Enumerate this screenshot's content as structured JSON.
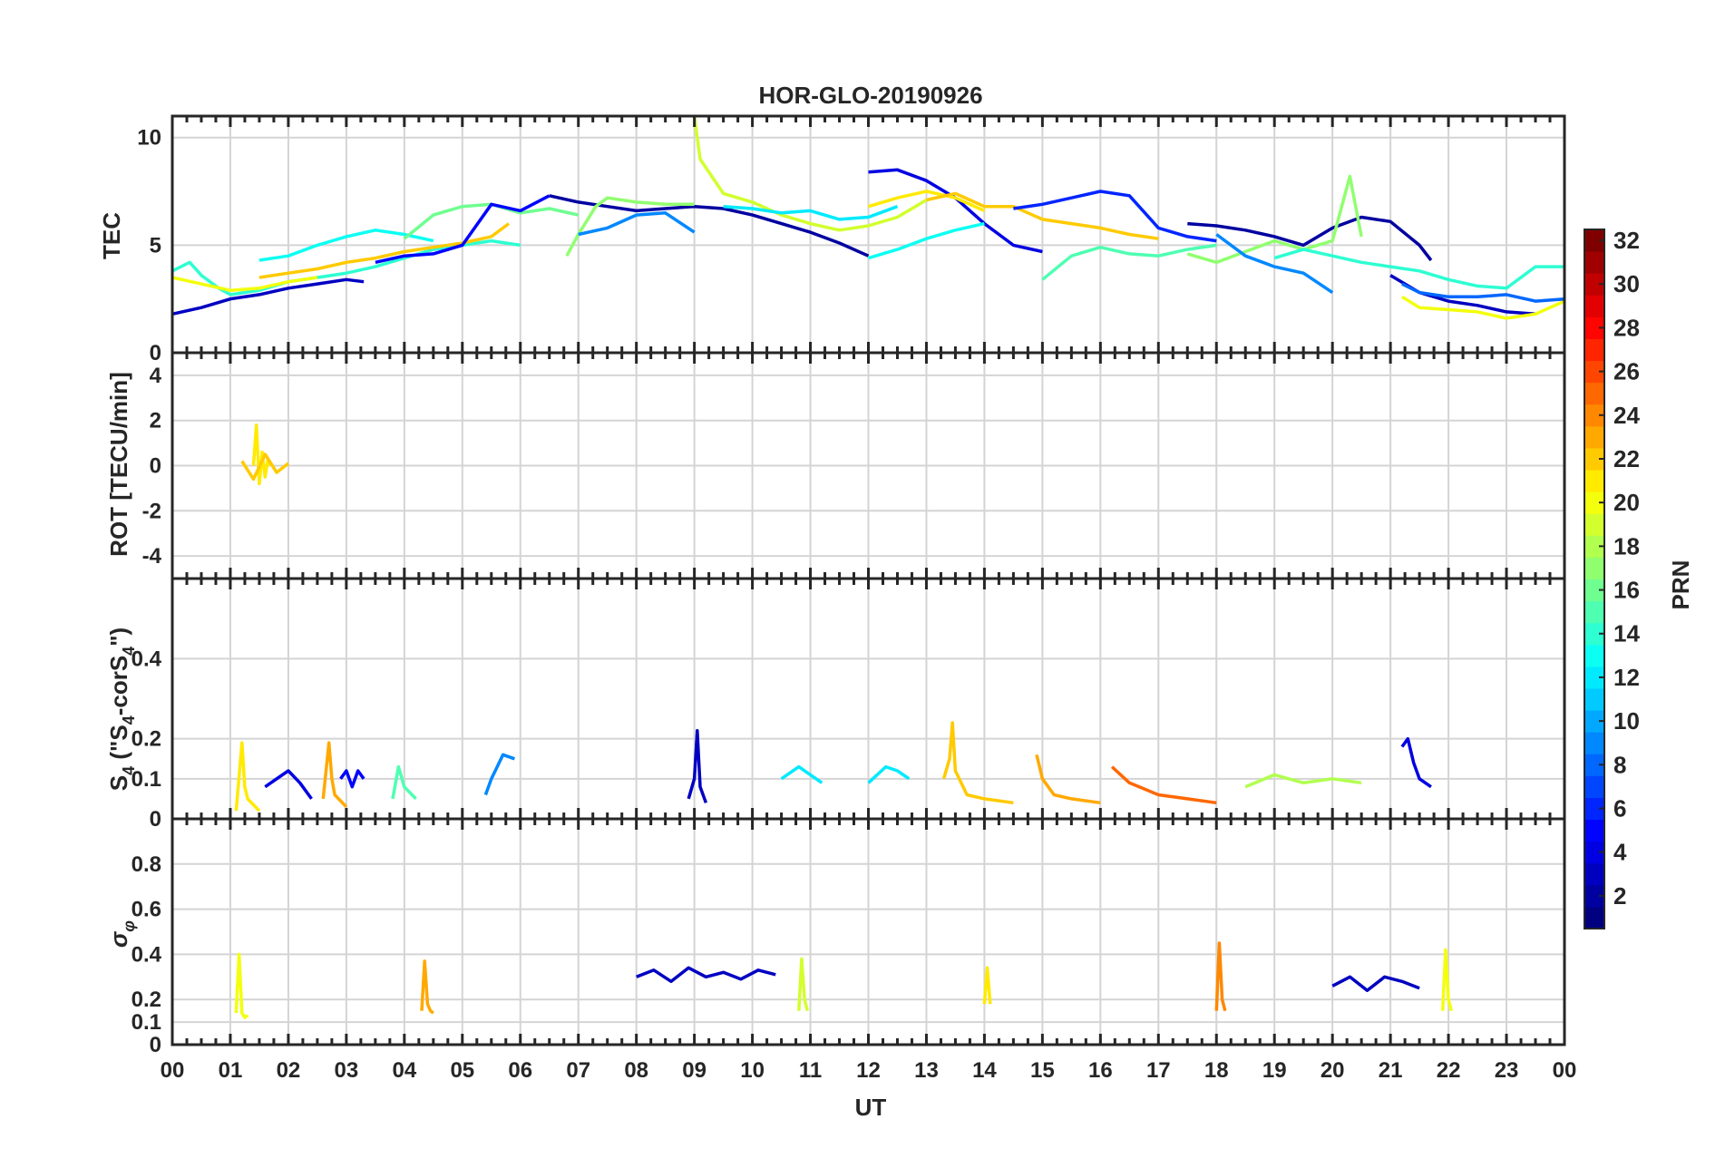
{
  "chart_data": {
    "type": "line",
    "title": "HOR-GLO-20190926",
    "xlabel": "UT",
    "x_ticks": [
      "00",
      "01",
      "02",
      "03",
      "04",
      "05",
      "06",
      "07",
      "08",
      "09",
      "10",
      "11",
      "12",
      "13",
      "14",
      "15",
      "16",
      "17",
      "18",
      "19",
      "20",
      "21",
      "22",
      "23",
      "00"
    ],
    "xlim": [
      0,
      24
    ],
    "grid": true,
    "colorbar": {
      "label": "PRN",
      "range": [
        1,
        32
      ],
      "ticks": [
        "2",
        "4",
        "6",
        "8",
        "10",
        "12",
        "14",
        "16",
        "18",
        "20",
        "22",
        "24",
        "26",
        "28",
        "30",
        "32"
      ],
      "colormap": "jet"
    },
    "panels": [
      {
        "name": "tec",
        "ylabel": "TEC",
        "ylim": [
          0,
          11
        ],
        "yticks": [
          "0",
          "5",
          "10"
        ],
        "series": [
          {
            "prn": 3,
            "x": [
              0.0,
              0.5,
              1.0,
              1.5,
              2.0,
              2.5,
              3.0,
              3.3
            ],
            "y": [
              1.8,
              2.1,
              2.5,
              2.7,
              3.0,
              3.2,
              3.4,
              3.3
            ]
          },
          {
            "prn": 14,
            "x": [
              0.0,
              0.3,
              0.5,
              0.8,
              1.0,
              1.5,
              2.0,
              2.5,
              3.0,
              3.5,
              4.0,
              4.5,
              5.0,
              5.5,
              6.0
            ],
            "y": [
              3.8,
              4.2,
              3.6,
              3.0,
              2.7,
              2.9,
              3.3,
              3.5,
              3.7,
              4.0,
              4.4,
              4.8,
              5.0,
              5.2,
              5.0
            ]
          },
          {
            "prn": 20,
            "x": [
              0.0,
              0.5,
              1.0,
              1.5,
              2.0,
              2.5
            ],
            "y": [
              3.5,
              3.2,
              2.9,
              3.0,
              3.3,
              3.5
            ]
          },
          {
            "prn": 22,
            "x": [
              1.5,
              2.0,
              2.5,
              3.0,
              3.5,
              4.0,
              4.5,
              5.0,
              5.5,
              5.8
            ],
            "y": [
              3.5,
              3.7,
              3.9,
              4.2,
              4.4,
              4.7,
              4.9,
              5.1,
              5.4,
              6.0
            ]
          },
          {
            "prn": 13,
            "x": [
              1.5,
              2.0,
              2.5,
              3.0,
              3.5,
              4.0,
              4.5
            ],
            "y": [
              4.3,
              4.5,
              5.0,
              5.4,
              5.7,
              5.5,
              5.2
            ]
          },
          {
            "prn": 16,
            "x": [
              4.0,
              4.5,
              5.0,
              5.5,
              6.0,
              6.5,
              7.0
            ],
            "y": [
              5.3,
              6.4,
              6.8,
              6.9,
              6.5,
              6.7,
              6.4
            ]
          },
          {
            "prn": 5,
            "x": [
              3.5,
              4.0,
              4.5,
              5.0,
              5.5,
              6.0,
              6.5
            ],
            "y": [
              4.2,
              4.5,
              4.6,
              5.0,
              6.9,
              6.6,
              7.3
            ]
          },
          {
            "prn": 2,
            "x": [
              6.5,
              7.0,
              7.5,
              8.0,
              8.5,
              9.0,
              9.5,
              10.0,
              10.5,
              11.0,
              11.5,
              12.0
            ],
            "y": [
              7.3,
              7.0,
              6.8,
              6.6,
              6.7,
              6.8,
              6.7,
              6.4,
              6.0,
              5.6,
              5.1,
              4.5
            ]
          },
          {
            "prn": 17,
            "x": [
              6.8,
              7.0,
              7.3,
              7.5,
              8.0,
              8.5,
              9.0
            ],
            "y": [
              4.5,
              5.5,
              6.8,
              7.2,
              7.0,
              6.9,
              6.9
            ]
          },
          {
            "prn": 9,
            "x": [
              7.0,
              7.5,
              8.0,
              8.5,
              9.0
            ],
            "y": [
              5.5,
              5.8,
              6.4,
              6.5,
              5.6
            ]
          },
          {
            "prn": 19,
            "x": [
              9.0,
              9.1,
              9.3,
              9.5,
              10.0,
              10.5,
              11.0,
              11.5,
              12.0,
              12.5,
              13.0
            ],
            "y": [
              11.0,
              9.0,
              8.2,
              7.4,
              7.0,
              6.4,
              6.0,
              5.7,
              5.9,
              6.3,
              7.1
            ]
          },
          {
            "prn": 12,
            "x": [
              9.5,
              10.0,
              10.5,
              11.0,
              11.5,
              12.0,
              12.5
            ],
            "y": [
              6.8,
              6.7,
              6.5,
              6.6,
              6.2,
              6.3,
              6.8
            ]
          },
          {
            "prn": 4,
            "x": [
              12.0,
              12.5,
              13.0,
              13.5,
              14.0,
              14.5,
              15.0
            ],
            "y": [
              8.4,
              8.5,
              8.0,
              7.2,
              6.0,
              5.0,
              4.7
            ]
          },
          {
            "prn": 21,
            "x": [
              12.0,
              12.5,
              13.0,
              13.5,
              14.0
            ],
            "y": [
              6.8,
              7.2,
              7.5,
              7.2,
              6.6
            ]
          },
          {
            "prn": 13,
            "x": [
              12.0,
              12.5,
              13.0,
              13.5,
              14.0
            ],
            "y": [
              4.4,
              4.8,
              5.3,
              5.7,
              6.0
            ]
          },
          {
            "prn": 22,
            "x": [
              13.0,
              13.5,
              14.0,
              14.5,
              15.0,
              15.5,
              16.0,
              16.5,
              17.0
            ],
            "y": [
              7.1,
              7.4,
              6.8,
              6.8,
              6.2,
              6.0,
              5.8,
              5.5,
              5.3
            ]
          },
          {
            "prn": 6,
            "x": [
              14.5,
              15.0,
              15.5,
              16.0,
              16.5,
              17.0,
              17.5,
              18.0
            ],
            "y": [
              6.7,
              6.9,
              7.2,
              7.5,
              7.3,
              5.8,
              5.4,
              5.2
            ]
          },
          {
            "prn": 15,
            "x": [
              15.0,
              15.5,
              16.0,
              16.5,
              17.0,
              17.5,
              18.0
            ],
            "y": [
              3.4,
              4.5,
              4.9,
              4.6,
              4.5,
              4.8,
              5.0
            ]
          },
          {
            "prn": 2,
            "x": [
              17.5,
              18.0,
              18.5,
              19.0,
              19.5,
              20.0,
              20.5,
              21.0,
              21.5,
              21.7
            ],
            "y": [
              6.0,
              5.9,
              5.7,
              5.4,
              5.0,
              5.8,
              6.3,
              6.1,
              5.0,
              4.3
            ]
          },
          {
            "prn": 17,
            "x": [
              17.5,
              18.0,
              18.5,
              19.0,
              19.5,
              20.0,
              20.3,
              20.5
            ],
            "y": [
              4.6,
              4.2,
              4.7,
              5.2,
              4.8,
              5.2,
              8.2,
              5.4
            ]
          },
          {
            "prn": 9,
            "x": [
              18.0,
              18.5,
              19.0,
              19.5,
              20.0
            ],
            "y": [
              5.5,
              4.5,
              4.0,
              3.7,
              2.8
            ]
          },
          {
            "prn": 14,
            "x": [
              19.0,
              19.5,
              20.0,
              20.5,
              21.0,
              21.5,
              22.0,
              22.5,
              23.0,
              23.5,
              24.0
            ],
            "y": [
              4.4,
              4.8,
              4.5,
              4.2,
              4.0,
              3.8,
              3.4,
              3.1,
              3.0,
              4.0,
              4.0
            ]
          },
          {
            "prn": 3,
            "x": [
              21.0,
              21.5,
              22.0,
              22.5,
              23.0,
              23.5
            ],
            "y": [
              3.6,
              2.8,
              2.4,
              2.2,
              1.9,
              1.8
            ]
          },
          {
            "prn": 20,
            "x": [
              21.2,
              21.5,
              22.0,
              22.5,
              23.0,
              23.5,
              24.0
            ],
            "y": [
              2.6,
              2.1,
              2.0,
              1.9,
              1.6,
              1.8,
              2.4
            ]
          },
          {
            "prn": 8,
            "x": [
              21.2,
              21.5,
              22.0,
              22.5,
              23.0,
              23.5,
              24.0
            ],
            "y": [
              3.2,
              2.8,
              2.6,
              2.6,
              2.7,
              2.4,
              2.5
            ]
          }
        ]
      },
      {
        "name": "rot",
        "ylabel": "ROT [TECU/min]",
        "ylim": [
          -5,
          5
        ],
        "yticks": [
          "-4",
          "-2",
          "0",
          "2",
          "4"
        ],
        "series": [
          {
            "prn": 21,
            "x": [
              1.4,
              1.45,
              1.5,
              1.55,
              1.6,
              1.65,
              1.7
            ],
            "y": [
              0.0,
              1.8,
              -0.8,
              0.6,
              -0.5,
              0.3,
              0.0
            ]
          },
          {
            "prn": 22,
            "x": [
              1.2,
              1.4,
              1.6,
              1.8,
              2.0
            ],
            "y": [
              0.2,
              -0.6,
              0.5,
              -0.3,
              0.1
            ]
          }
        ]
      },
      {
        "name": "s4",
        "ylabel": "S4 (\"S4-corS4\")",
        "ylim": [
          0,
          0.6
        ],
        "yticks": [
          "0",
          "0.1",
          "0.2",
          "0.4"
        ],
        "series": [
          {
            "prn": 21,
            "x": [
              1.1,
              1.2,
              1.25,
              1.3,
              1.5
            ],
            "y": [
              0.02,
              0.19,
              0.08,
              0.05,
              0.02
            ]
          },
          {
            "prn": 4,
            "x": [
              1.6,
              1.8,
              2.0,
              2.2,
              2.4
            ],
            "y": [
              0.08,
              0.1,
              0.12,
              0.09,
              0.05
            ]
          },
          {
            "prn": 23,
            "x": [
              2.6,
              2.7,
              2.75,
              2.8,
              3.0
            ],
            "y": [
              0.05,
              0.19,
              0.1,
              0.06,
              0.03
            ]
          },
          {
            "prn": 5,
            "x": [
              2.9,
              3.0,
              3.1,
              3.2,
              3.3
            ],
            "y": [
              0.1,
              0.12,
              0.08,
              0.12,
              0.1
            ]
          },
          {
            "prn": 15,
            "x": [
              3.8,
              3.9,
              4.0,
              4.2
            ],
            "y": [
              0.05,
              0.13,
              0.08,
              0.05
            ]
          },
          {
            "prn": 9,
            "x": [
              5.4,
              5.5,
              5.6,
              5.7,
              5.9
            ],
            "y": [
              0.06,
              0.1,
              0.13,
              0.16,
              0.15
            ]
          },
          {
            "prn": 3,
            "x": [
              8.9,
              9.0,
              9.05,
              9.1,
              9.2
            ],
            "y": [
              0.05,
              0.1,
              0.22,
              0.08,
              0.04
            ]
          },
          {
            "prn": 12,
            "x": [
              10.5,
              10.8,
              11.0,
              11.2
            ],
            "y": [
              0.1,
              0.13,
              0.11,
              0.09
            ]
          },
          {
            "prn": 12,
            "x": [
              12.0,
              12.3,
              12.5,
              12.7
            ],
            "y": [
              0.09,
              0.13,
              0.12,
              0.1
            ]
          },
          {
            "prn": 22,
            "x": [
              13.3,
              13.4,
              13.45,
              13.5,
              13.7,
              14.0,
              14.5
            ],
            "y": [
              0.1,
              0.15,
              0.24,
              0.12,
              0.06,
              0.05,
              0.04
            ]
          },
          {
            "prn": 23,
            "x": [
              14.9,
              15.0,
              15.2,
              15.5,
              16.0
            ],
            "y": [
              0.16,
              0.1,
              0.06,
              0.05,
              0.04
            ]
          },
          {
            "prn": 25,
            "x": [
              16.2,
              16.5,
              17.0,
              17.5,
              18.0
            ],
            "y": [
              0.13,
              0.09,
              0.06,
              0.05,
              0.04
            ]
          },
          {
            "prn": 18,
            "x": [
              18.5,
              19.0,
              19.5,
              20.0,
              20.5
            ],
            "y": [
              0.08,
              0.11,
              0.09,
              0.1,
              0.09
            ]
          },
          {
            "prn": 4,
            "x": [
              21.2,
              21.3,
              21.4,
              21.5,
              21.7
            ],
            "y": [
              0.18,
              0.2,
              0.14,
              0.1,
              0.08
            ]
          }
        ]
      },
      {
        "name": "sigma_phi",
        "ylabel": "σφ",
        "ylim": [
          0,
          1
        ],
        "yticks": [
          "0",
          "0.1",
          "0.2",
          "0.4",
          "0.6",
          "0.8"
        ],
        "series": [
          {
            "prn": 20,
            "x": [
              1.1,
              1.15,
              1.2,
              1.25,
              1.3
            ],
            "y": [
              0.14,
              0.4,
              0.14,
              0.12,
              0.13
            ]
          },
          {
            "prn": 23,
            "x": [
              4.3,
              4.35,
              4.4,
              4.45,
              4.5
            ],
            "y": [
              0.15,
              0.37,
              0.18,
              0.15,
              0.14
            ]
          },
          {
            "prn": 3,
            "x": [
              8.0,
              8.3,
              8.6,
              8.9,
              9.2,
              9.5,
              9.8,
              10.1,
              10.4
            ],
            "y": [
              0.3,
              0.33,
              0.28,
              0.34,
              0.3,
              0.32,
              0.29,
              0.33,
              0.31
            ]
          },
          {
            "prn": 19,
            "x": [
              10.8,
              10.85,
              10.9,
              10.95
            ],
            "y": [
              0.15,
              0.38,
              0.2,
              0.15
            ]
          },
          {
            "prn": 21,
            "x": [
              14.0,
              14.05,
              14.1
            ],
            "y": [
              0.18,
              0.34,
              0.18
            ]
          },
          {
            "prn": 24,
            "x": [
              18.0,
              18.05,
              18.1,
              18.15
            ],
            "y": [
              0.15,
              0.45,
              0.2,
              0.15
            ]
          },
          {
            "prn": 3,
            "x": [
              20.0,
              20.3,
              20.6,
              20.9,
              21.2,
              21.5
            ],
            "y": [
              0.26,
              0.3,
              0.24,
              0.3,
              0.28,
              0.25
            ]
          },
          {
            "prn": 20,
            "x": [
              21.9,
              21.95,
              22.0,
              22.05
            ],
            "y": [
              0.15,
              0.42,
              0.2,
              0.15
            ]
          }
        ]
      }
    ]
  }
}
